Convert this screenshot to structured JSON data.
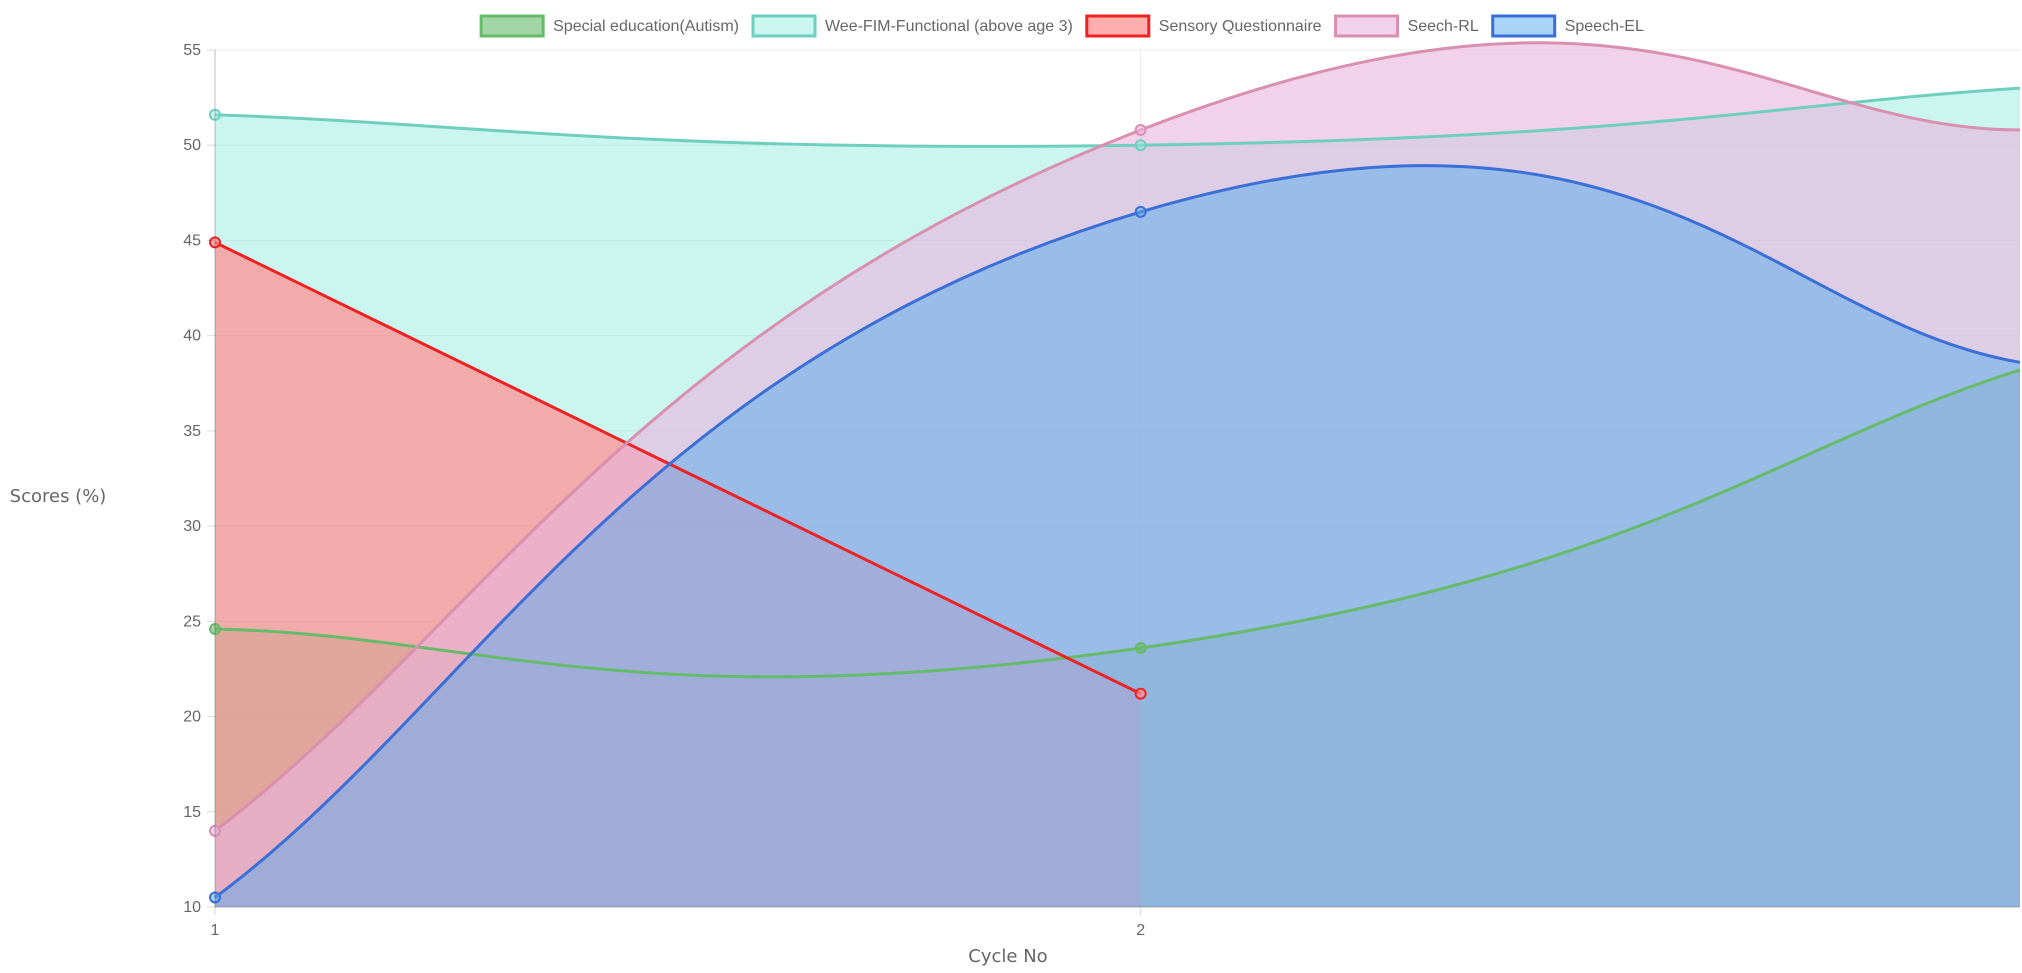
{
  "chart_data": {
    "type": "area",
    "xlabel": "Cycle No",
    "ylabel": "Scores (%)",
    "x_ticks": [
      1,
      2
    ],
    "x_range": [
      1,
      2.95
    ],
    "ylim": [
      10,
      55
    ],
    "y_ticks": [
      10,
      15,
      20,
      25,
      30,
      35,
      40,
      45,
      50,
      55
    ],
    "grid": true,
    "legend_position": "top",
    "series": [
      {
        "name": "Special education(Autism)",
        "color": "#66bb6a",
        "fill": "rgba(102,187,106,0.6)",
        "x": [
          1,
          2,
          2.95
        ],
        "values": [
          24.6,
          23.6,
          38.2
        ]
      },
      {
        "name": "Wee-FIM-Functional (above age 3)",
        "color": "#6fcfbf",
        "fill": "rgba(140,236,222,0.45)",
        "x": [
          1,
          2,
          2.95
        ],
        "values": [
          51.6,
          50.0,
          53.0
        ]
      },
      {
        "name": "Sensory Questionnaire",
        "color": "#ee2222",
        "fill": "rgba(255,140,140,0.7)",
        "x": [
          1,
          2
        ],
        "values": [
          44.9,
          21.2
        ]
      },
      {
        "name": "Seech-RL",
        "color": "#d98fb0",
        "fill": "rgba(234,180,222,0.6)",
        "x": [
          1,
          2,
          2.95
        ],
        "values": [
          14.0,
          50.8,
          50.8
        ]
      },
      {
        "name": "Speech-EL",
        "color": "#3b6fd8",
        "fill": "rgba(85,170,235,0.5)",
        "x": [
          1,
          2,
          2.95
        ],
        "values": [
          10.5,
          46.5,
          38.6
        ]
      }
    ]
  }
}
